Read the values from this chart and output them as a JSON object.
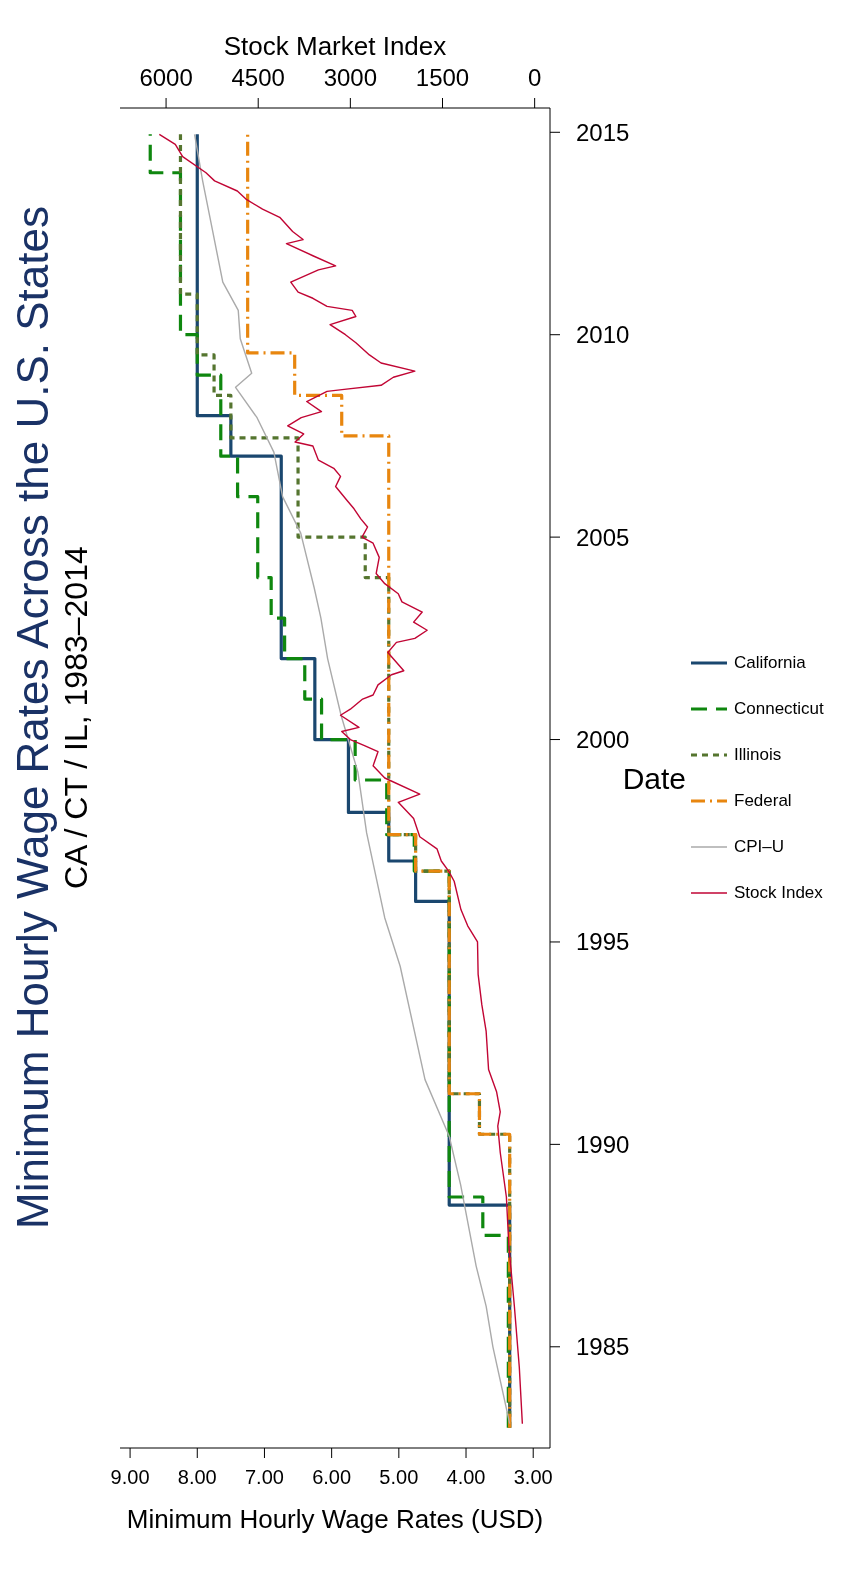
{
  "chart_data": {
    "type": "step",
    "orientation": "horizontal",
    "title": "Minimum Hourly Wage Rates Across the U.S. States",
    "subtitle": "CA / CT / IL, 1983–2014",
    "ylabel": "Date",
    "xlabel": "Minimum Hourly Wage Rates (USD)",
    "x2label": "Stock Market Index",
    "ylim": [
      1982.5,
      2015.6
    ],
    "yticks": [
      1985,
      1990,
      1995,
      2000,
      2005,
      2010,
      2015
    ],
    "xlim": [
      9.15,
      2.75
    ],
    "xticks": [
      {
        "value": 3,
        "label": "3.00"
      },
      {
        "value": 4,
        "label": "4.00"
      },
      {
        "value": 5,
        "label": "5.00"
      },
      {
        "value": 6,
        "label": "6.00"
      },
      {
        "value": 7,
        "label": "7.00"
      },
      {
        "value": 8,
        "label": "8.00"
      },
      {
        "value": 9,
        "label": "9.00"
      }
    ],
    "x2lim": [
      6750,
      -250
    ],
    "x2ticks": [
      0,
      1500,
      3000,
      4500,
      6000
    ],
    "legend": "right",
    "grid": false,
    "series": [
      {
        "name": "California",
        "color": "#1a476f",
        "line_style": "solid",
        "x": [
          1983.0,
          1988.5,
          1996.0,
          1997.0,
          1998.2,
          2000.0,
          2002.0,
          2007.0,
          2008.0,
          2014.95
        ],
        "values": [
          3.35,
          4.25,
          4.75,
          5.15,
          5.75,
          6.25,
          6.75,
          7.5,
          8.0,
          8.0
        ]
      },
      {
        "name": "Connecticut",
        "color": "#0f870f",
        "line_style": "dashed",
        "x": [
          1983.0,
          1987.75,
          1988.7,
          1996.75,
          1997.65,
          1999.0,
          2000.0,
          2001.0,
          2002.0,
          2003.0,
          2004.0,
          2006.0,
          2007.0,
          2009.0,
          2010.0,
          2014.0,
          2014.95
        ],
        "values": [
          3.37,
          3.75,
          4.25,
          4.77,
          5.18,
          5.65,
          6.15,
          6.4,
          6.7,
          6.9,
          7.1,
          7.4,
          7.65,
          8.0,
          8.25,
          8.7,
          8.7
        ]
      },
      {
        "name": "Illinois",
        "color": "#55752f",
        "line_style": "dotted",
        "x": [
          1983.0,
          1990.25,
          1991.25,
          1996.75,
          1997.65,
          2004.0,
          2005.0,
          2007.45,
          2008.5,
          2009.5,
          2011.0,
          2014.95
        ],
        "values": [
          3.35,
          3.8,
          4.25,
          4.75,
          5.15,
          5.5,
          6.5,
          7.5,
          7.75,
          8.0,
          8.25,
          8.25
        ]
      },
      {
        "name": "Federal",
        "color": "#e8860f",
        "line_style": "dashdot",
        "x": [
          1983.0,
          1990.25,
          1991.25,
          1996.75,
          1997.65,
          2007.5,
          2008.5,
          2009.55,
          2014.95
        ],
        "values": [
          3.35,
          3.8,
          4.25,
          4.75,
          5.15,
          5.85,
          6.55,
          7.25,
          7.25
        ]
      },
      {
        "name": "CPI–U",
        "color": "#aaaaaa",
        "type": "line",
        "line_style": "solid",
        "x": [
          1983.1,
          1985,
          1986,
          1987,
          1989.0,
          1990.2,
          1991.6,
          1994.4,
          1995.6,
          1997.7,
          1999.2,
          2000.6,
          2002.0,
          2003.0,
          2003.75,
          2005.1,
          2006.0,
          2007.1,
          2007.95,
          2008.7,
          2009.05,
          2009.9,
          2010.6,
          2011.3,
          2012.55,
          2013.8,
          2014.95
        ],
        "values": [
          3.35,
          3.6,
          3.7,
          3.85,
          4.08,
          4.25,
          4.61,
          4.98,
          5.21,
          5.48,
          5.61,
          5.86,
          6.06,
          6.16,
          6.26,
          6.46,
          6.73,
          6.86,
          7.11,
          7.43,
          7.19,
          7.36,
          7.39,
          7.62,
          7.77,
          7.92,
          8.04
        ]
      },
      {
        "name": "Stock Index",
        "color": "#c10534",
        "type": "line",
        "line_style": "solid",
        "axis": "x2",
        "x": [
          1983.1,
          1984.5,
          1986.0,
          1987.5,
          1988.7,
          1989.8,
          1990.45,
          1990.8,
          1991.3,
          1991.85,
          1992.8,
          1993.45,
          1994.2,
          1995.0,
          1995.4,
          1995.8,
          1996.5,
          1996.75,
          1997.0,
          1997.3,
          1997.6,
          1998.05,
          1998.45,
          1998.65,
          1999.05,
          1999.35,
          1999.7,
          1999.85,
          2000.0,
          2000.2,
          2000.3,
          2000.6,
          2000.75,
          2001.0,
          2001.1,
          2001.35,
          2001.6,
          2001.7,
          2002.15,
          2002.4,
          2002.5,
          2002.7,
          2002.9,
          2003.15,
          2003.4,
          2003.6,
          2003.85,
          2004.1,
          2004.5,
          2004.85,
          2005.0,
          2005.25,
          2005.45,
          2005.7,
          2005.9,
          2006.25,
          2006.5,
          2006.7,
          2006.9,
          2007.25,
          2007.35,
          2007.55,
          2007.75,
          2007.95,
          2008.1,
          2008.35,
          2008.6,
          2008.65,
          2008.75,
          2008.95,
          2009.1,
          2009.3,
          2009.5,
          2009.8,
          2010.0,
          2010.25,
          2010.45,
          2010.6,
          2010.7,
          2010.9,
          2011.05,
          2011.3,
          2011.6,
          2011.7,
          2011.95,
          2012.25,
          2012.35,
          2012.55,
          2012.9,
          2013.1,
          2013.35,
          2013.55,
          2013.8,
          2014.0,
          2014.4,
          2014.7,
          2014.95
        ],
        "values": [
          200,
          250,
          330,
          420,
          460,
          560,
          600,
          560,
          620,
          750,
          790,
          860,
          920,
          930,
          1090,
          1200,
          1310,
          1400,
          1520,
          1590,
          1870,
          1970,
          2220,
          1870,
          2440,
          2630,
          2550,
          2770,
          3000,
          3140,
          2860,
          3160,
          3000,
          2800,
          2630,
          2550,
          2330,
          2130,
          2390,
          2250,
          1950,
          1750,
          1970,
          1830,
          2160,
          2220,
          2440,
          2580,
          2530,
          2630,
          2810,
          2720,
          2830,
          2940,
          3050,
          3240,
          3160,
          3270,
          3520,
          3610,
          3900,
          3760,
          4020,
          3800,
          3470,
          3710,
          3380,
          3100,
          2500,
          2300,
          1950,
          2500,
          2690,
          2910,
          3080,
          3330,
          2910,
          2970,
          3380,
          3610,
          3850,
          3970,
          3520,
          3240,
          3610,
          4040,
          3770,
          3940,
          4150,
          4430,
          4700,
          4840,
          5210,
          5350,
          5730,
          5850,
          6110
        ]
      }
    ]
  }
}
